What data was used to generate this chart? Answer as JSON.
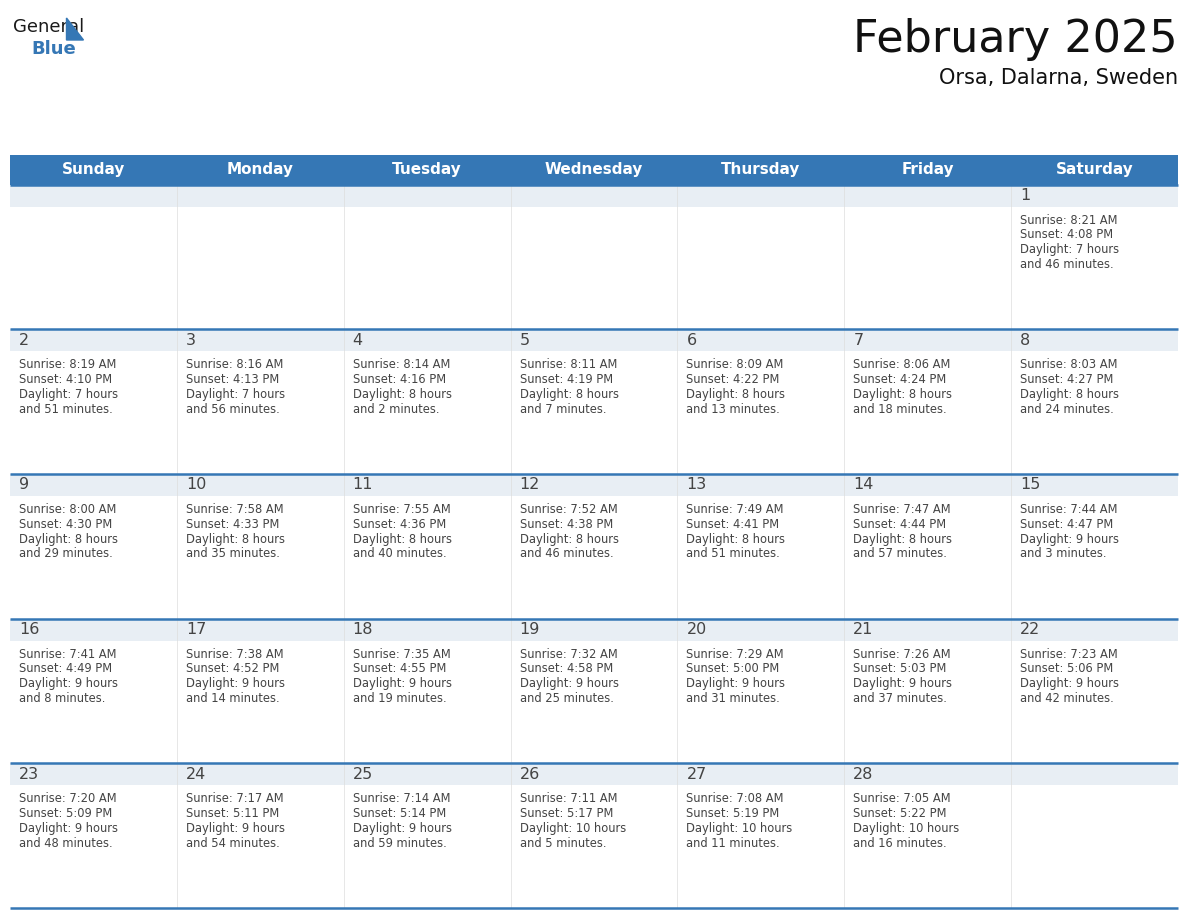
{
  "title": "February 2025",
  "subtitle": "Orsa, Dalarna, Sweden",
  "header_bg_color": "#3577b5",
  "header_text_color": "#ffffff",
  "cell_bg_daynum": "#e8eef4",
  "cell_bg_info": "#ffffff",
  "divider_color": "#3577b5",
  "border_color": "#cccccc",
  "text_color": "#444444",
  "days_of_week": [
    "Sunday",
    "Monday",
    "Tuesday",
    "Wednesday",
    "Thursday",
    "Friday",
    "Saturday"
  ],
  "calendar_data": [
    [
      null,
      null,
      null,
      null,
      null,
      null,
      {
        "day": "1",
        "sunrise": "8:21 AM",
        "sunset": "4:08 PM",
        "daylight_line1": "Daylight: 7 hours",
        "daylight_line2": "and 46 minutes."
      }
    ],
    [
      {
        "day": "2",
        "sunrise": "8:19 AM",
        "sunset": "4:10 PM",
        "daylight_line1": "Daylight: 7 hours",
        "daylight_line2": "and 51 minutes."
      },
      {
        "day": "3",
        "sunrise": "8:16 AM",
        "sunset": "4:13 PM",
        "daylight_line1": "Daylight: 7 hours",
        "daylight_line2": "and 56 minutes."
      },
      {
        "day": "4",
        "sunrise": "8:14 AM",
        "sunset": "4:16 PM",
        "daylight_line1": "Daylight: 8 hours",
        "daylight_line2": "and 2 minutes."
      },
      {
        "day": "5",
        "sunrise": "8:11 AM",
        "sunset": "4:19 PM",
        "daylight_line1": "Daylight: 8 hours",
        "daylight_line2": "and 7 minutes."
      },
      {
        "day": "6",
        "sunrise": "8:09 AM",
        "sunset": "4:22 PM",
        "daylight_line1": "Daylight: 8 hours",
        "daylight_line2": "and 13 minutes."
      },
      {
        "day": "7",
        "sunrise": "8:06 AM",
        "sunset": "4:24 PM",
        "daylight_line1": "Daylight: 8 hours",
        "daylight_line2": "and 18 minutes."
      },
      {
        "day": "8",
        "sunrise": "8:03 AM",
        "sunset": "4:27 PM",
        "daylight_line1": "Daylight: 8 hours",
        "daylight_line2": "and 24 minutes."
      }
    ],
    [
      {
        "day": "9",
        "sunrise": "8:00 AM",
        "sunset": "4:30 PM",
        "daylight_line1": "Daylight: 8 hours",
        "daylight_line2": "and 29 minutes."
      },
      {
        "day": "10",
        "sunrise": "7:58 AM",
        "sunset": "4:33 PM",
        "daylight_line1": "Daylight: 8 hours",
        "daylight_line2": "and 35 minutes."
      },
      {
        "day": "11",
        "sunrise": "7:55 AM",
        "sunset": "4:36 PM",
        "daylight_line1": "Daylight: 8 hours",
        "daylight_line2": "and 40 minutes."
      },
      {
        "day": "12",
        "sunrise": "7:52 AM",
        "sunset": "4:38 PM",
        "daylight_line1": "Daylight: 8 hours",
        "daylight_line2": "and 46 minutes."
      },
      {
        "day": "13",
        "sunrise": "7:49 AM",
        "sunset": "4:41 PM",
        "daylight_line1": "Daylight: 8 hours",
        "daylight_line2": "and 51 minutes."
      },
      {
        "day": "14",
        "sunrise": "7:47 AM",
        "sunset": "4:44 PM",
        "daylight_line1": "Daylight: 8 hours",
        "daylight_line2": "and 57 minutes."
      },
      {
        "day": "15",
        "sunrise": "7:44 AM",
        "sunset": "4:47 PM",
        "daylight_line1": "Daylight: 9 hours",
        "daylight_line2": "and 3 minutes."
      }
    ],
    [
      {
        "day": "16",
        "sunrise": "7:41 AM",
        "sunset": "4:49 PM",
        "daylight_line1": "Daylight: 9 hours",
        "daylight_line2": "and 8 minutes."
      },
      {
        "day": "17",
        "sunrise": "7:38 AM",
        "sunset": "4:52 PM",
        "daylight_line1": "Daylight: 9 hours",
        "daylight_line2": "and 14 minutes."
      },
      {
        "day": "18",
        "sunrise": "7:35 AM",
        "sunset": "4:55 PM",
        "daylight_line1": "Daylight: 9 hours",
        "daylight_line2": "and 19 minutes."
      },
      {
        "day": "19",
        "sunrise": "7:32 AM",
        "sunset": "4:58 PM",
        "daylight_line1": "Daylight: 9 hours",
        "daylight_line2": "and 25 minutes."
      },
      {
        "day": "20",
        "sunrise": "7:29 AM",
        "sunset": "5:00 PM",
        "daylight_line1": "Daylight: 9 hours",
        "daylight_line2": "and 31 minutes."
      },
      {
        "day": "21",
        "sunrise": "7:26 AM",
        "sunset": "5:03 PM",
        "daylight_line1": "Daylight: 9 hours",
        "daylight_line2": "and 37 minutes."
      },
      {
        "day": "22",
        "sunrise": "7:23 AM",
        "sunset": "5:06 PM",
        "daylight_line1": "Daylight: 9 hours",
        "daylight_line2": "and 42 minutes."
      }
    ],
    [
      {
        "day": "23",
        "sunrise": "7:20 AM",
        "sunset": "5:09 PM",
        "daylight_line1": "Daylight: 9 hours",
        "daylight_line2": "and 48 minutes."
      },
      {
        "day": "24",
        "sunrise": "7:17 AM",
        "sunset": "5:11 PM",
        "daylight_line1": "Daylight: 9 hours",
        "daylight_line2": "and 54 minutes."
      },
      {
        "day": "25",
        "sunrise": "7:14 AM",
        "sunset": "5:14 PM",
        "daylight_line1": "Daylight: 9 hours",
        "daylight_line2": "and 59 minutes."
      },
      {
        "day": "26",
        "sunrise": "7:11 AM",
        "sunset": "5:17 PM",
        "daylight_line1": "Daylight: 10 hours",
        "daylight_line2": "and 5 minutes."
      },
      {
        "day": "27",
        "sunrise": "7:08 AM",
        "sunset": "5:19 PM",
        "daylight_line1": "Daylight: 10 hours",
        "daylight_line2": "and 11 minutes."
      },
      {
        "day": "28",
        "sunrise": "7:05 AM",
        "sunset": "5:22 PM",
        "daylight_line1": "Daylight: 10 hours",
        "daylight_line2": "and 16 minutes."
      },
      null
    ]
  ]
}
